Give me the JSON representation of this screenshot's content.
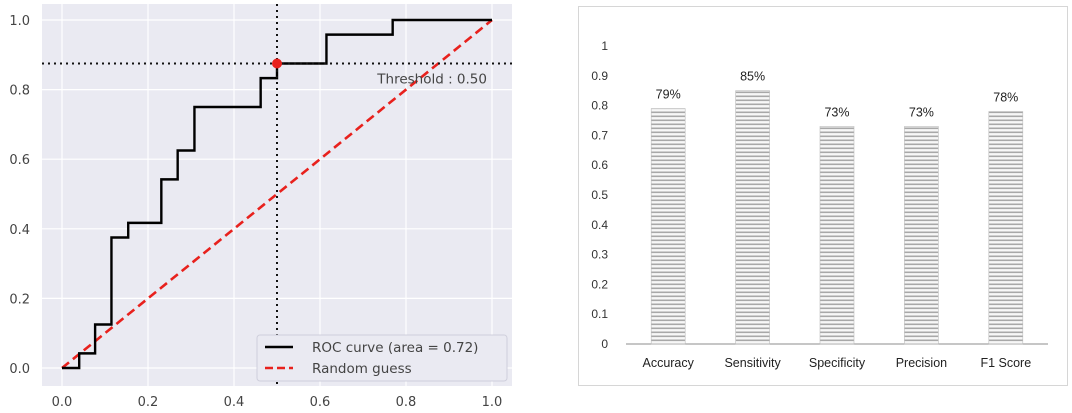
{
  "chart_data": [
    {
      "type": "line",
      "xlim": [
        0.0,
        1.0
      ],
      "ylim": [
        0.0,
        1.0
      ],
      "x_ticks": [
        "0.0",
        "0.2",
        "0.4",
        "0.6",
        "0.8",
        "1.0"
      ],
      "y_ticks": [
        "0.0",
        "0.2",
        "0.4",
        "0.6",
        "0.8",
        "1.0"
      ],
      "grid": true,
      "legend_position": "bottom-right",
      "series": [
        {
          "name": "ROC curve (area = 0.72)",
          "color": "#000000",
          "x": [
            0.0,
            0.04,
            0.04,
            0.077,
            0.077,
            0.115,
            0.115,
            0.154,
            0.154,
            0.231,
            0.231,
            0.269,
            0.269,
            0.308,
            0.308,
            0.462,
            0.462,
            0.5,
            0.5,
            0.615,
            0.615,
            0.769,
            0.769,
            1.0
          ],
          "y": [
            0.0,
            0.0,
            0.042,
            0.042,
            0.125,
            0.125,
            0.375,
            0.375,
            0.417,
            0.417,
            0.542,
            0.542,
            0.625,
            0.625,
            0.75,
            0.75,
            0.833,
            0.833,
            0.875,
            0.875,
            0.958,
            0.958,
            1.0,
            1.0
          ]
        },
        {
          "name": "Random guess",
          "color": "#e8211d",
          "dashed": true,
          "x": [
            0.0,
            1.0
          ],
          "y": [
            0.0,
            1.0
          ]
        }
      ],
      "threshold": {
        "label": "Threshold : 0.50",
        "x": 0.5,
        "y": 0.875,
        "color": "#e8211d"
      }
    },
    {
      "type": "bar",
      "categories": [
        "Accuracy",
        "Sensitivity",
        "Specificity",
        "Precision",
        "F1 Score"
      ],
      "values": [
        0.79,
        0.85,
        0.73,
        0.73,
        0.78
      ],
      "data_labels": [
        "79%",
        "85%",
        "73%",
        "73%",
        "78%"
      ],
      "ylim": [
        0,
        1
      ],
      "y_ticks": [
        "0",
        "0.1",
        "0.2",
        "0.3",
        "0.4",
        "0.5",
        "0.6",
        "0.7",
        "0.8",
        "0.9",
        "1"
      ],
      "bar_pattern": "horizontal-stripes",
      "bar_color": "#a8a8a8"
    }
  ]
}
